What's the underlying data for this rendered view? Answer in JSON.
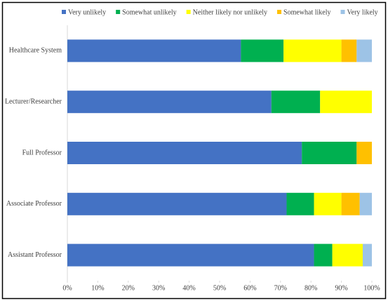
{
  "chart_data": {
    "type": "stacked-barh",
    "categories": [
      "Healthcare System",
      "Lecturer/Researcher",
      "Full Professor",
      "Associate Professor",
      "Assistant Professor"
    ],
    "series": [
      {
        "name": "Very unlikely",
        "color": "#4472c4",
        "values": [
          57,
          67,
          77,
          72,
          81
        ]
      },
      {
        "name": "Somewhat unlikely",
        "color": "#00b050",
        "values": [
          14,
          16,
          18,
          9,
          6
        ]
      },
      {
        "name": "Neither likely nor unlikely",
        "color": "#ffff00",
        "values": [
          19,
          17,
          0,
          9,
          10
        ]
      },
      {
        "name": "Somewhat likely",
        "color": "#ffc000",
        "values": [
          5,
          0,
          5,
          6,
          0
        ]
      },
      {
        "name": "Very likely",
        "color": "#9dc3e6",
        "values": [
          5,
          0,
          0,
          4,
          3
        ]
      }
    ],
    "xlim": [
      0,
      100
    ],
    "xticks": [
      {
        "value": 0,
        "label": "0%"
      },
      {
        "value": 10,
        "label": "10%"
      },
      {
        "value": 20,
        "label": "20%"
      },
      {
        "value": 30,
        "label": "30%"
      },
      {
        "value": 40,
        "label": "40%"
      },
      {
        "value": 50,
        "label": "50%"
      },
      {
        "value": 60,
        "label": "60%"
      },
      {
        "value": 70,
        "label": "70%"
      },
      {
        "value": 80,
        "label": "80%"
      },
      {
        "value": 90,
        "label": "90%"
      },
      {
        "value": 100,
        "label": "100%"
      }
    ],
    "legend": "top"
  }
}
